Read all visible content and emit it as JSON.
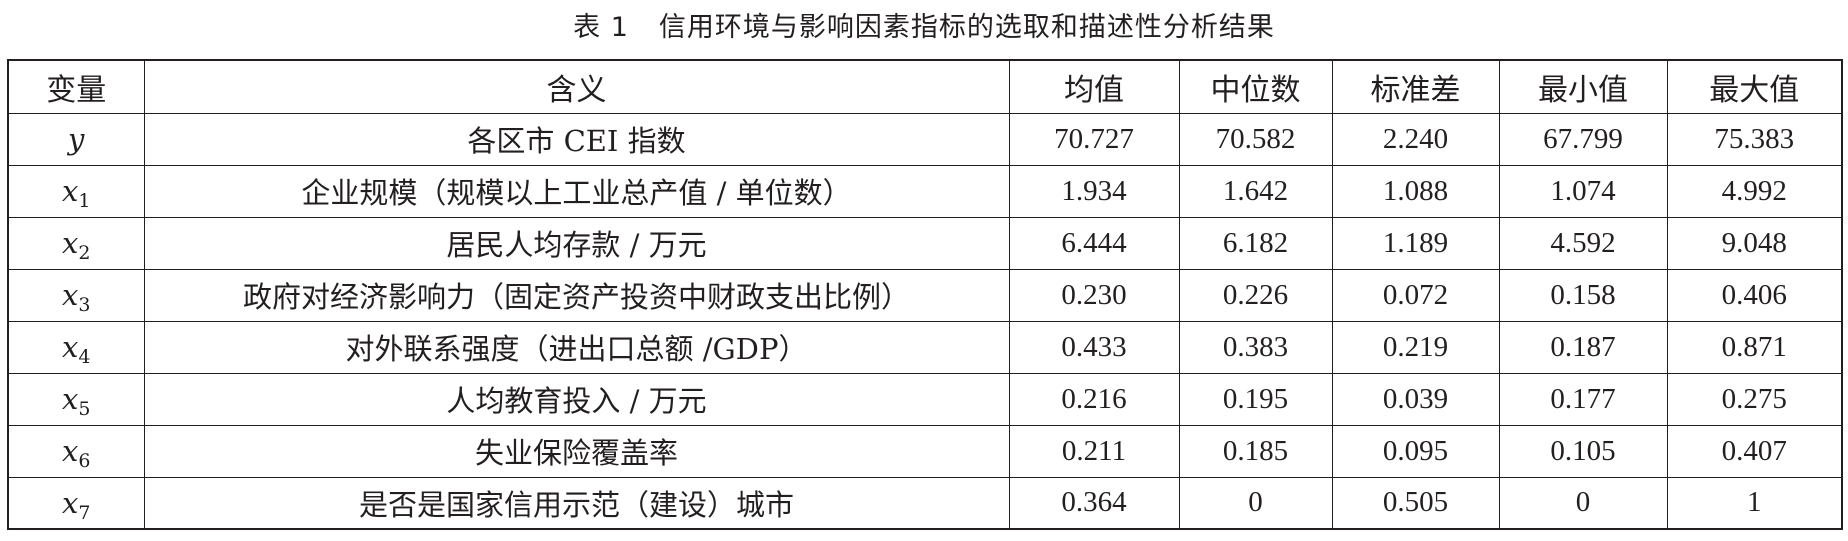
{
  "caption": {
    "number": "表 1",
    "title": "信用环境与影响因素指标的选取和描述性分析结果"
  },
  "table": {
    "headers": [
      "变量",
      "含义",
      "均值",
      "中位数",
      "标准差",
      "最小值",
      "最大值"
    ],
    "rows": [
      {
        "var": "y",
        "sub": "",
        "meaning": "各区市 CEI 指数",
        "mean": "70.727",
        "median": "70.582",
        "std": "2.240",
        "min": "67.799",
        "max": "75.383"
      },
      {
        "var": "x",
        "sub": "1",
        "meaning": "企业规模（规模以上工业总产值 / 单位数）",
        "mean": "1.934",
        "median": "1.642",
        "std": "1.088",
        "min": "1.074",
        "max": "4.992"
      },
      {
        "var": "x",
        "sub": "2",
        "meaning": "居民人均存款 / 万元",
        "mean": "6.444",
        "median": "6.182",
        "std": "1.189",
        "min": "4.592",
        "max": "9.048"
      },
      {
        "var": "x",
        "sub": "3",
        "meaning": "政府对经济影响力（固定资产投资中财政支出比例）",
        "mean": "0.230",
        "median": "0.226",
        "std": "0.072",
        "min": "0.158",
        "max": "0.406"
      },
      {
        "var": "x",
        "sub": "4",
        "meaning": "对外联系强度（进出口总额 /GDP）",
        "mean": "0.433",
        "median": "0.383",
        "std": "0.219",
        "min": "0.187",
        "max": "0.871"
      },
      {
        "var": "x",
        "sub": "5",
        "meaning": "人均教育投入 / 万元",
        "mean": "0.216",
        "median": "0.195",
        "std": "0.039",
        "min": "0.177",
        "max": "0.275"
      },
      {
        "var": "x",
        "sub": "6",
        "meaning": "失业保险覆盖率",
        "mean": "0.211",
        "median": "0.185",
        "std": "0.095",
        "min": "0.105",
        "max": "0.407"
      },
      {
        "var": "x",
        "sub": "7",
        "meaning": "是否是国家信用示范（建设）城市",
        "mean": "0.364",
        "median": "0",
        "std": "0.505",
        "min": "0",
        "max": "1"
      }
    ]
  }
}
